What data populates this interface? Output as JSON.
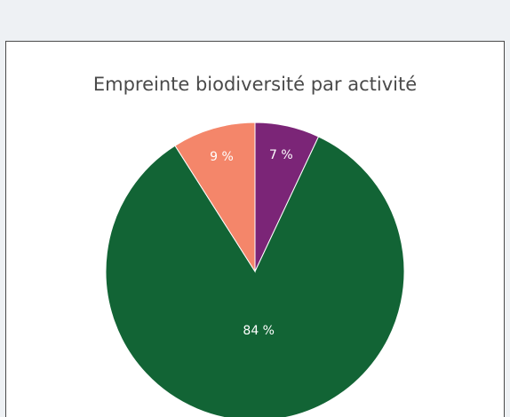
{
  "chart_data": {
    "type": "pie",
    "title": "Empreinte biodiversité par activité",
    "values": [
      7,
      84,
      9
    ],
    "value_labels": [
      "7 %",
      "84 %",
      "9 %"
    ],
    "colors": [
      "#7b2577",
      "#126435",
      "#f4866a"
    ]
  }
}
